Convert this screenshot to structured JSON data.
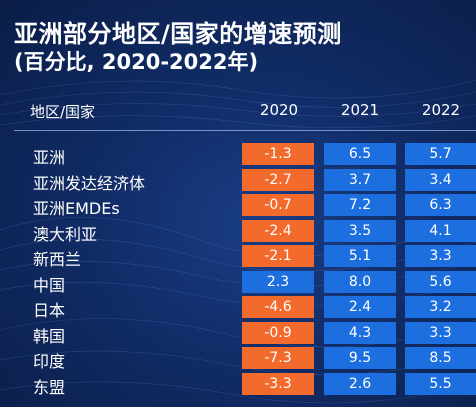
{
  "title": "亚洲部分地区/国家的增速预测",
  "subtitle": "(百分比, 2020-2022年)",
  "colors": {
    "negative": "#f26a2c",
    "positive": "#1d6fe0",
    "background": "#112c66"
  },
  "chart_data": {
    "type": "table",
    "title": "亚洲部分地区/国家的增速预测",
    "subtitle": "(百分比, 2020-2022年)",
    "row_header": "地区/国家",
    "columns": [
      "2020",
      "2021",
      "2022"
    ],
    "rows": [
      {
        "region": "亚洲",
        "values": [
          "-1.3",
          "6.5",
          "5.7"
        ]
      },
      {
        "region": "亚洲发达经济体",
        "values": [
          "-2.7",
          "3.7",
          "3.4"
        ]
      },
      {
        "region": "亚洲EMDEs",
        "values": [
          "-0.7",
          "7.2",
          "6.3"
        ]
      },
      {
        "region": "澳大利亚",
        "values": [
          "-2.4",
          "3.5",
          "4.1"
        ]
      },
      {
        "region": "新西兰",
        "values": [
          "-2.1",
          "5.1",
          "3.3"
        ]
      },
      {
        "region": "中国",
        "values": [
          "2.3",
          "8.0",
          "5.6"
        ]
      },
      {
        "region": "日本",
        "values": [
          "-4.6",
          "2.4",
          "3.2"
        ]
      },
      {
        "region": "韩国",
        "values": [
          "-0.9",
          "4.3",
          "3.3"
        ]
      },
      {
        "region": "印度",
        "values": [
          "-7.3",
          "9.5",
          "8.5"
        ]
      },
      {
        "region": "东盟",
        "values": [
          "-3.3",
          "2.6",
          "5.5"
        ]
      }
    ]
  }
}
